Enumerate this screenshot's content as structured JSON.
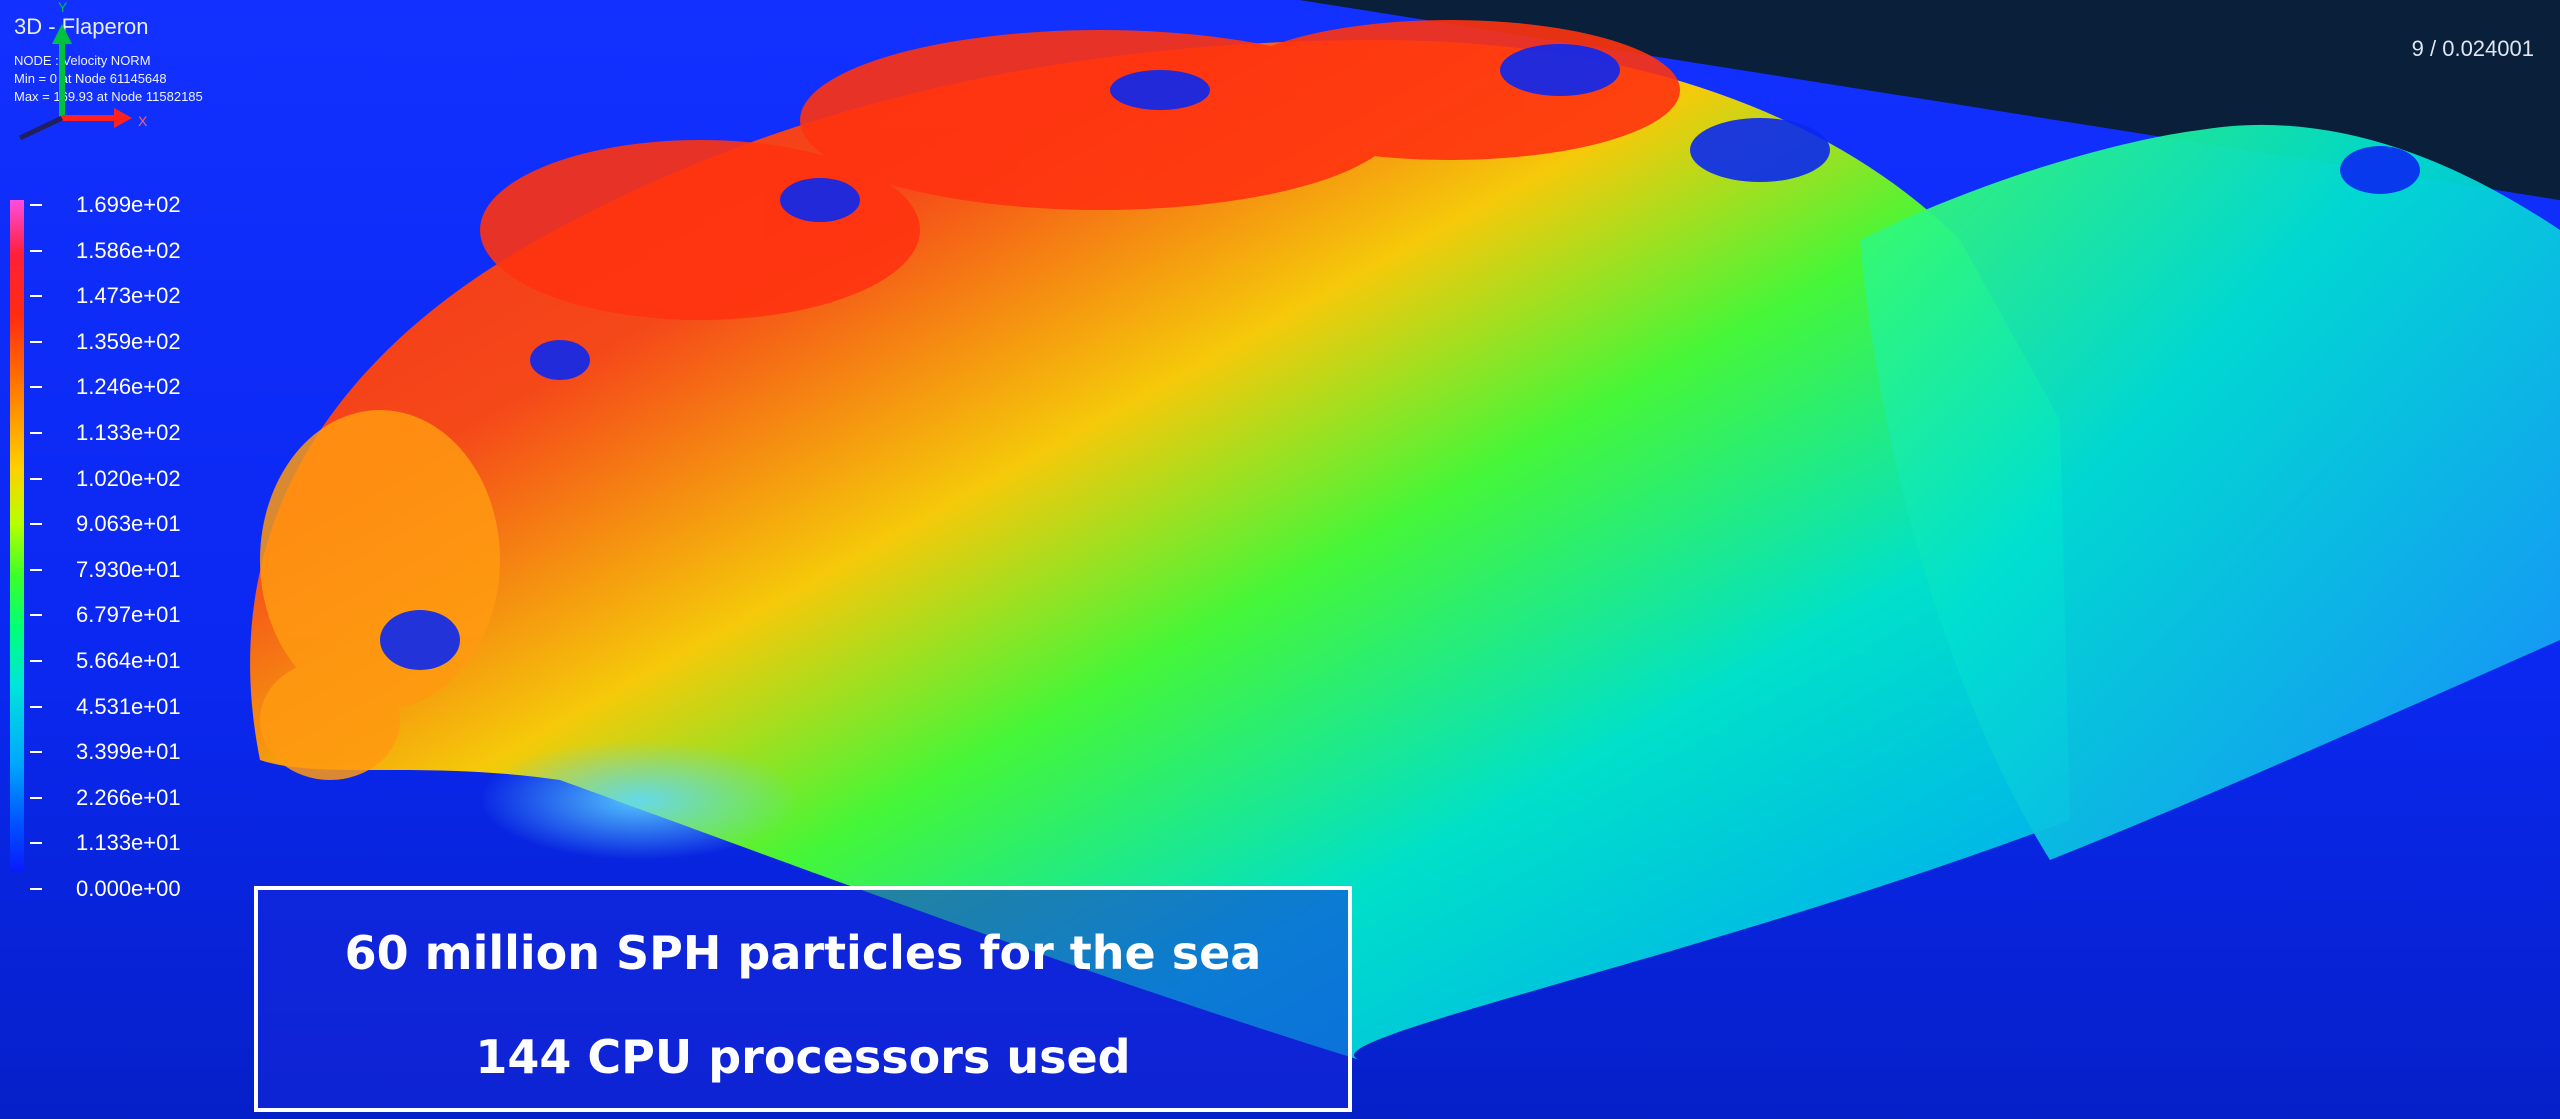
{
  "viewport": {
    "title": "3D - Flaperon",
    "info_lines": [
      "NODE : Velocity NORM",
      "Min = 0 at Node 61145648",
      "Max = 169.93 at Node 11582185"
    ],
    "frame_label": "9 / 0.024001"
  },
  "legend": {
    "values": [
      "1.699e+02",
      "1.586e+02",
      "1.473e+02",
      "1.359e+02",
      "1.246e+02",
      "1.133e+02",
      "1.020e+02",
      "9.063e+01",
      "7.930e+01",
      "6.797e+01",
      "5.664e+01",
      "4.531e+01",
      "3.399e+01",
      "2.266e+01",
      "1.133e+01",
      "0.000e+00"
    ]
  },
  "caption": {
    "line1": "60 million SPH particles for the sea",
    "line2": "144 CPU processors used"
  },
  "triad": {
    "y": "Y",
    "x": "X"
  },
  "colors": {
    "background": "#0a1f3a",
    "sea": "#0a2cff",
    "caption_fill": "#1428dc",
    "high": "#ff2010",
    "mid": "#3aff2a",
    "low": "#00c0ff"
  }
}
